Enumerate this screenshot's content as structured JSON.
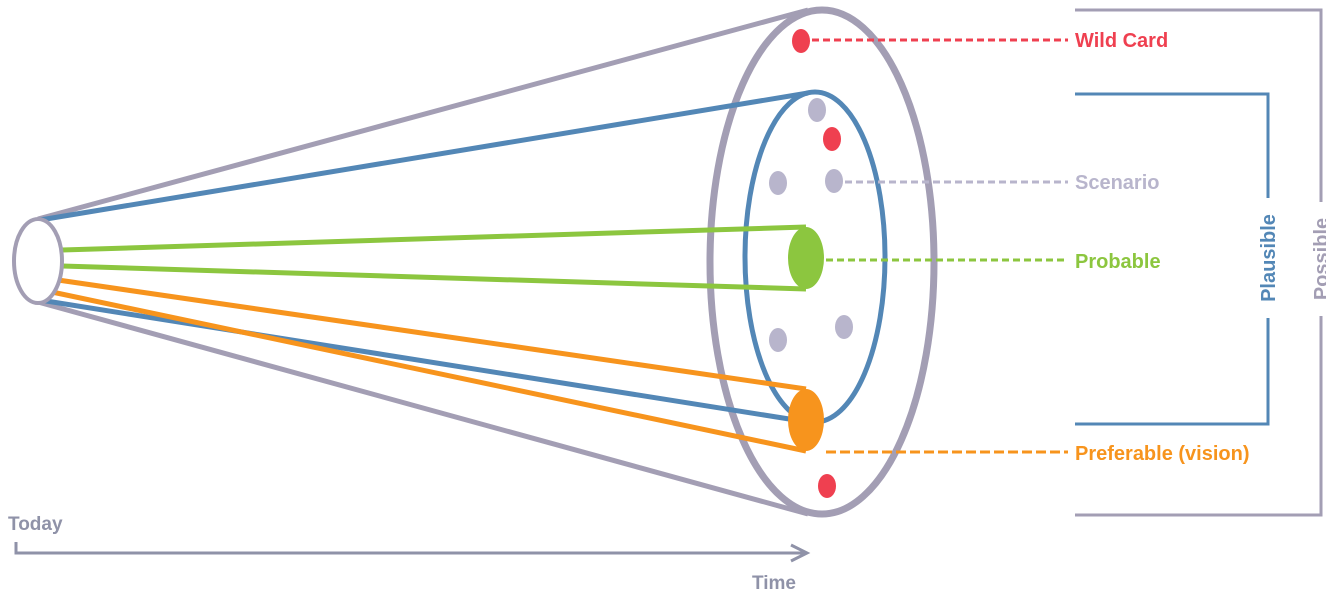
{
  "labels": {
    "wild_card": "Wild Card",
    "scenario": "Scenario",
    "probable": "Probable",
    "preferable": "Preferable (vision)",
    "plausible": "Plausible",
    "possible": "Possible",
    "today": "Today",
    "time": "Time"
  },
  "colors": {
    "possible": "#a39eb4",
    "plausible": "#5387b6",
    "probable": "#8cc63f",
    "preferable": "#f7941d",
    "wild_card": "#ef4050",
    "scenario": "#b8b5cc",
    "axis": "#8f92a8"
  }
}
